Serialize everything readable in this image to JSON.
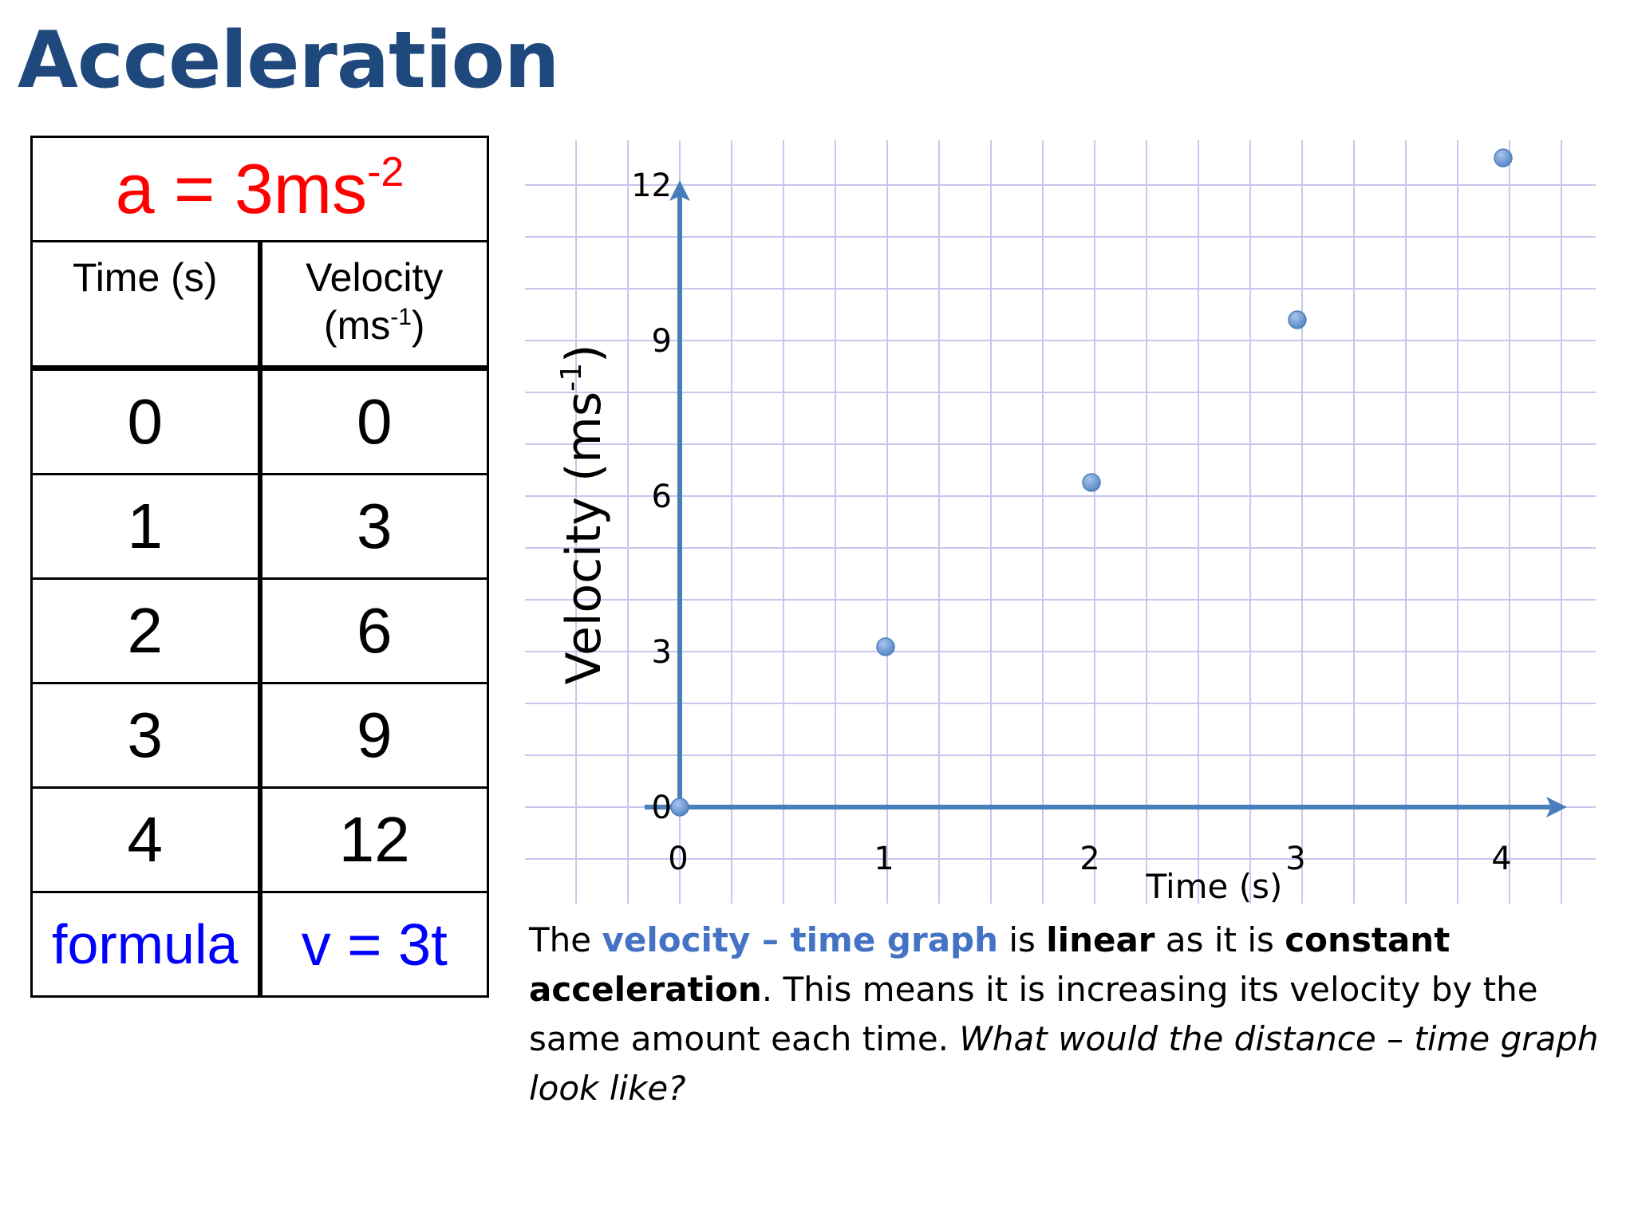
{
  "title": "Acceleration",
  "table": {
    "acceleration": {
      "base": "a = 3ms",
      "exp": "-2"
    },
    "headers": {
      "time": "Time (s)",
      "velocity_line1": "Velocity",
      "velocity_unit_open": "(ms",
      "velocity_unit_exp": "-1",
      "velocity_unit_close": ")"
    },
    "rows": [
      {
        "time": "0",
        "velocity": "0"
      },
      {
        "time": "1",
        "velocity": "3"
      },
      {
        "time": "2",
        "velocity": "6"
      },
      {
        "time": "3",
        "velocity": "9"
      },
      {
        "time": "4",
        "velocity": "12"
      }
    ],
    "formula_label": "formula",
    "formula_value": "v = 3t"
  },
  "chart_data": {
    "type": "scatter",
    "x": [
      0,
      1,
      2,
      3,
      4
    ],
    "y": [
      0,
      3,
      6,
      9,
      12
    ],
    "xlabel": "Time (s)",
    "ylabel": "Velocity (ms",
    "ylabel_exp": "-1",
    "ylabel_close": ")",
    "xticks": [
      "0",
      "1",
      "2",
      "3",
      "4"
    ],
    "yticks": [
      "0",
      "3",
      "6",
      "9",
      "12"
    ],
    "xlim": [
      0,
      4
    ],
    "ylim": [
      0,
      12
    ],
    "grid": true,
    "colors": {
      "grid": "#c6c6ef",
      "axis": "#4a7ebb",
      "point": "#4f81bd",
      "point_light": "#a9c4f0"
    }
  },
  "description": {
    "p1": "The ",
    "p2": "velocity – time graph",
    "p3": " is ",
    "p4": "linear",
    "p5": " as it is ",
    "p6": "constant acceleration",
    "p7": ". This means it is increasing its velocity by the same amount each time. ",
    "p8": "What would the distance – time graph look like?"
  }
}
